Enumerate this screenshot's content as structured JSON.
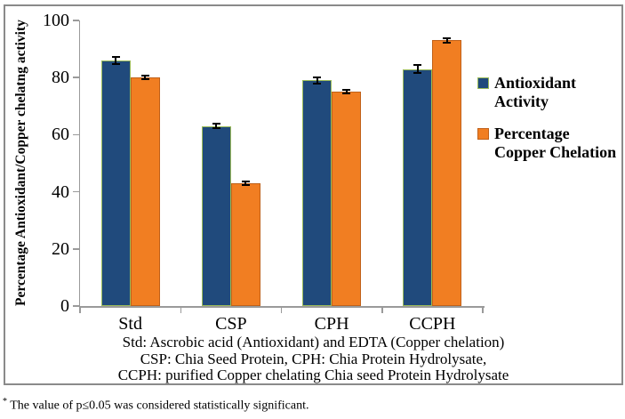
{
  "figure": {
    "caption_lines": [
      "Std: Ascrobic acid (Antioxidant) and EDTA (Copper chelation)",
      "CSP: Chia Seed Protein, CPH: Chia Protein Hydrolysate,",
      "CCPH: purified Copper chelating Chia seed Protein Hydrolysate"
    ],
    "footnote_marker": "*",
    "footnote_text": " The value of p≤0.05 was considered statistically significant."
  },
  "chart_data": {
    "type": "bar",
    "categories": [
      "Std",
      "CSP",
      "CPH",
      "CCPH"
    ],
    "series": [
      {
        "name": "Antioxidant Activity",
        "values": [
          86,
          63,
          79,
          83
        ],
        "errors": [
          1.2,
          0.6,
          1.0,
          1.2
        ],
        "fill": "#204A7C",
        "border": "#9BBB59"
      },
      {
        "name": "Percentage Copper Chelation",
        "values": [
          80,
          43,
          75,
          93
        ],
        "errors": [
          0.5,
          0.6,
          0.5,
          0.5
        ],
        "fill": "#F17E22",
        "border": "#C0611A"
      }
    ],
    "title": "",
    "xlabel": "",
    "ylabel": "Percentage Antioxidant/Copper chelatng activity",
    "ylim": [
      0,
      100
    ],
    "yticks": [
      0,
      20,
      40,
      60,
      80,
      100
    ],
    "grid": false,
    "legend_position": "right",
    "error_bars": true,
    "axis_color": "#9A9A9A",
    "frame_color": "#8A8A8A"
  }
}
